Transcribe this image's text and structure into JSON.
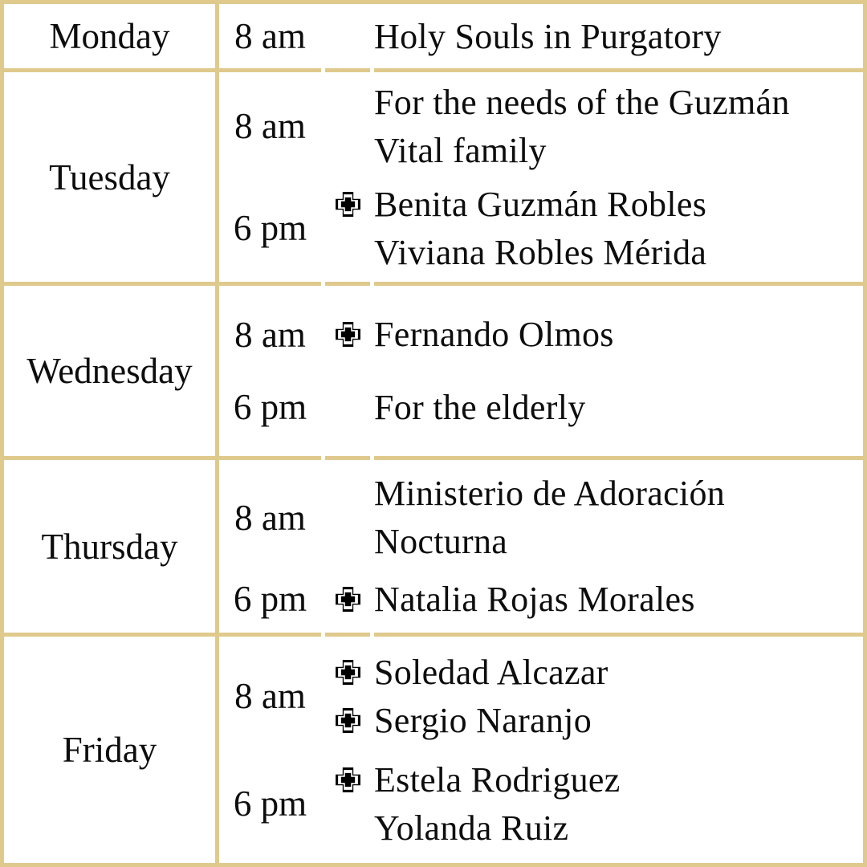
{
  "colors": {
    "border_gold": "#DFC98C",
    "text_black": "#0D0D0D",
    "background": "#FFFFFF"
  },
  "icons": {
    "cross": "outlined-greek-cross"
  },
  "schedule": {
    "rows": [
      {
        "day": "Monday",
        "entries": [
          {
            "time": "8 am",
            "lines": [
              {
                "cross": false,
                "text": "Holy Souls in Purgatory"
              }
            ]
          }
        ]
      },
      {
        "day": "Tuesday",
        "entries": [
          {
            "time": "8 am",
            "lines": [
              {
                "cross": false,
                "text": "For the needs of the Guzmán"
              },
              {
                "cross": false,
                "text": "Vital family"
              }
            ]
          },
          {
            "time": "6 pm",
            "lines": [
              {
                "cross": true,
                "text": "Benita Guzmán Robles"
              },
              {
                "cross": false,
                "text": "Viviana Robles Mérida"
              }
            ]
          }
        ]
      },
      {
        "day": "Wednesday",
        "entries": [
          {
            "time": "8 am",
            "lines": [
              {
                "cross": true,
                "text": "Fernando Olmos"
              }
            ]
          },
          {
            "time": "6 pm",
            "lines": [
              {
                "cross": false,
                "text": "For the elderly"
              }
            ]
          }
        ]
      },
      {
        "day": "Thursday",
        "entries": [
          {
            "time": "8 am",
            "lines": [
              {
                "cross": false,
                "text": "Ministerio de Adoración"
              },
              {
                "cross": false,
                "text": "Nocturna"
              }
            ]
          },
          {
            "time": "6 pm",
            "lines": [
              {
                "cross": true,
                "text": "Natalia Rojas Morales"
              }
            ]
          }
        ]
      },
      {
        "day": "Friday",
        "entries": [
          {
            "time": "8 am",
            "lines": [
              {
                "cross": true,
                "text": "Soledad Alcazar"
              },
              {
                "cross": true,
                "text": "Sergio Naranjo"
              }
            ]
          },
          {
            "time": "6 pm",
            "lines": [
              {
                "cross": true,
                "text": "Estela Rodriguez"
              },
              {
                "cross": false,
                "text": "Yolanda Ruiz"
              }
            ]
          }
        ]
      }
    ]
  }
}
